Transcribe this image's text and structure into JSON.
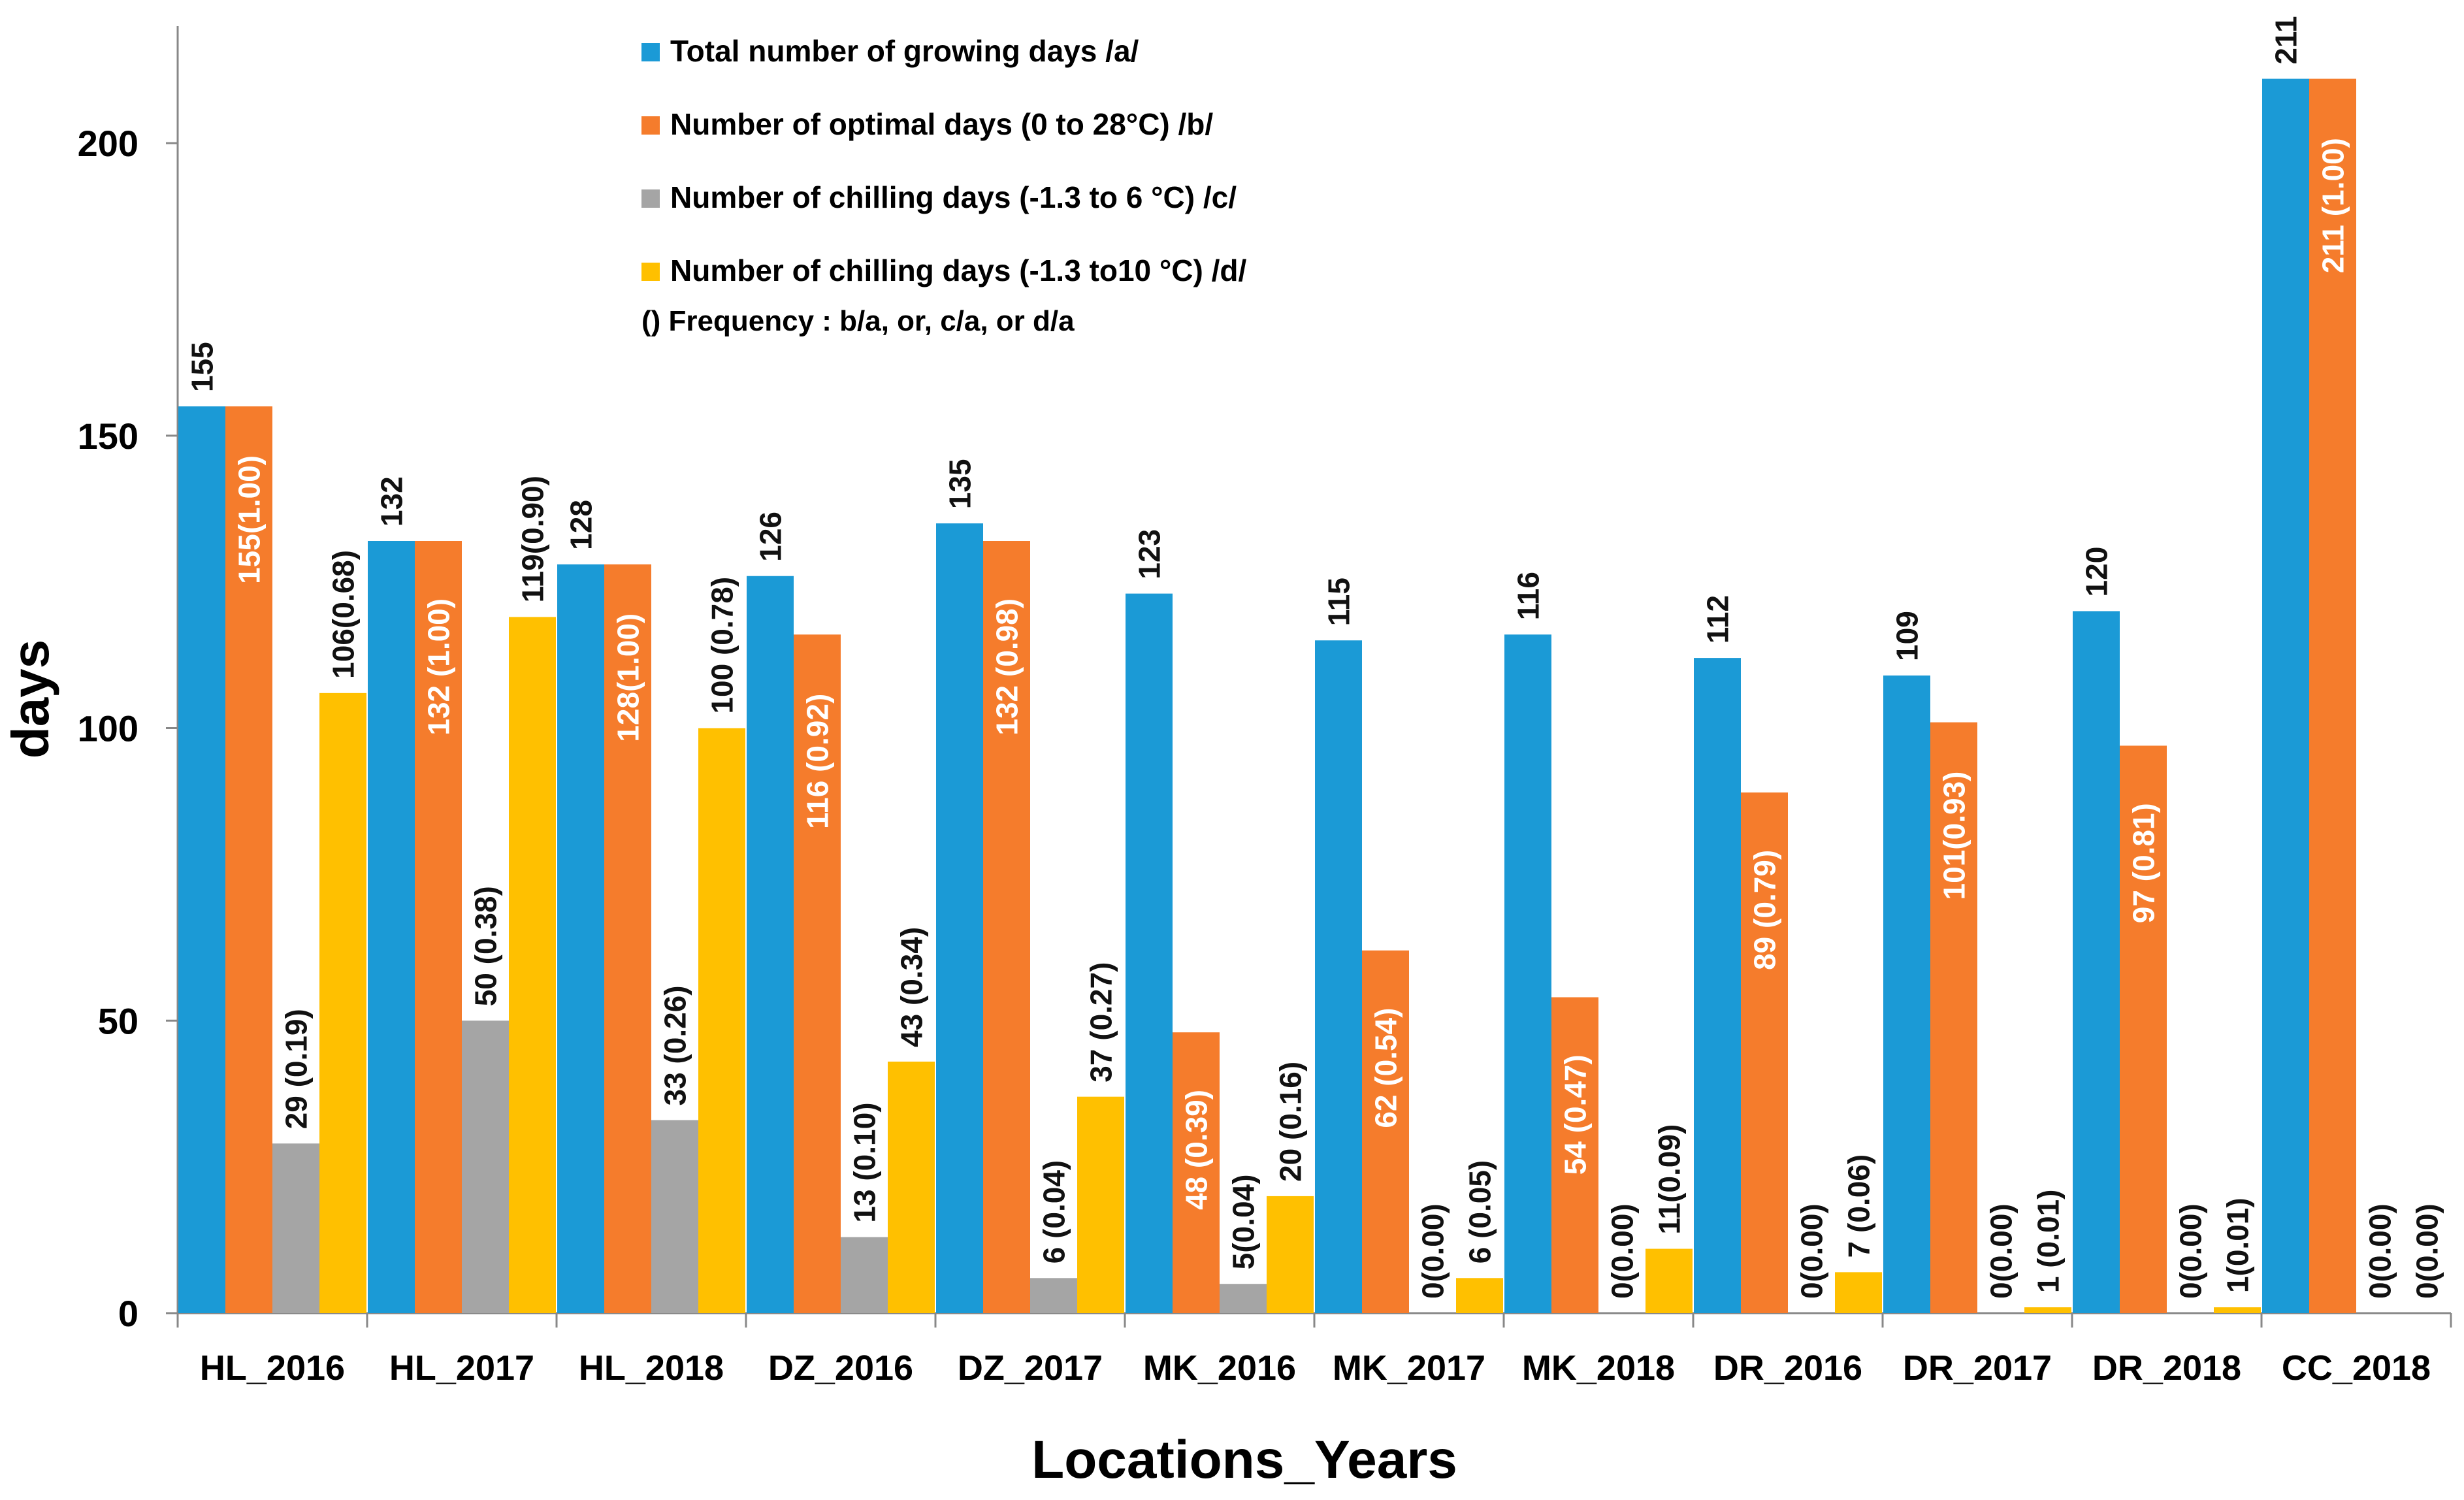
{
  "chart_data": {
    "type": "bar",
    "title": "",
    "xlabel": "Locations_Years",
    "ylabel": "days",
    "ylim": [
      0,
      220
    ],
    "yticks": [
      0,
      50,
      100,
      150,
      200
    ],
    "grid": false,
    "categories": [
      "HL_2016",
      "HL_2017",
      "HL_2018",
      "DZ_2016",
      "DZ_2017",
      "MK_2016",
      "MK_2017",
      "MK_2018",
      "DR_2016",
      "DR_2017",
      "DR_2018",
      "CC_2018"
    ],
    "series": [
      {
        "name": "Total number of growing days /a/",
        "color": "#1b9ad6",
        "label_color": "#111111",
        "values": [
          155,
          132,
          128,
          126,
          135,
          123,
          115,
          116,
          112,
          109,
          120,
          211
        ],
        "labels": [
          "155",
          "132",
          "128",
          "126",
          "135",
          "123",
          "115",
          "116",
          "112",
          "109",
          "120",
          "211"
        ]
      },
      {
        "name": "Number of optimal days (0 to 28°C) /b/",
        "color": "#f57c2c",
        "label_color": "#ffffff",
        "values": [
          155,
          132,
          128,
          116,
          132,
          48,
          62,
          54,
          89,
          101,
          97,
          211
        ],
        "labels": [
          "155(1.00)",
          "132 (1.00)",
          "128(1.00)",
          "116 (0.92)",
          "132 (0.98)",
          "48 (0.39)",
          "62 (0.54)",
          "54 (0.47)",
          "89 (0.79)",
          "101(0.93)",
          "97 (0.81)",
          "211 (1.00)"
        ]
      },
      {
        "name": "Number of chilling days (-1.3 to 6 °C) /c/",
        "color": "#a5a5a5",
        "label_color": "#111111",
        "values": [
          29,
          50,
          33,
          13,
          6,
          5,
          0,
          0,
          0,
          0,
          0,
          0
        ],
        "labels": [
          "29 (0.19)",
          "50 (0.38)",
          "33 (0.26)",
          "13 (0.10)",
          "6 (0.04)",
          "5(0.04)",
          "0(0.00)",
          "0(0.00)",
          "0(0.00)",
          "0(0.00)",
          "0(0.00)",
          "0(0.00)"
        ]
      },
      {
        "name": "Number of chilling days (-1.3 to10 °C) /d/",
        "color": "#ffc000",
        "label_color": "#111111",
        "values": [
          106,
          119,
          100,
          43,
          37,
          20,
          6,
          11,
          7,
          1,
          1,
          0
        ],
        "labels": [
          "106(0.68)",
          "119(0.90)",
          "100 (0.78)",
          "43 (0.34)",
          "37 (0.27)",
          "20 (0.16)",
          "6 (0.05)",
          "11(0.09)",
          "7 (0.06)",
          "1 (0.01)",
          "1(0.01)",
          "0(0.00)"
        ]
      }
    ],
    "legend_note": "()  Frequency : b/a, or, c/a, or d/a",
    "legend_position": "top-center"
  }
}
